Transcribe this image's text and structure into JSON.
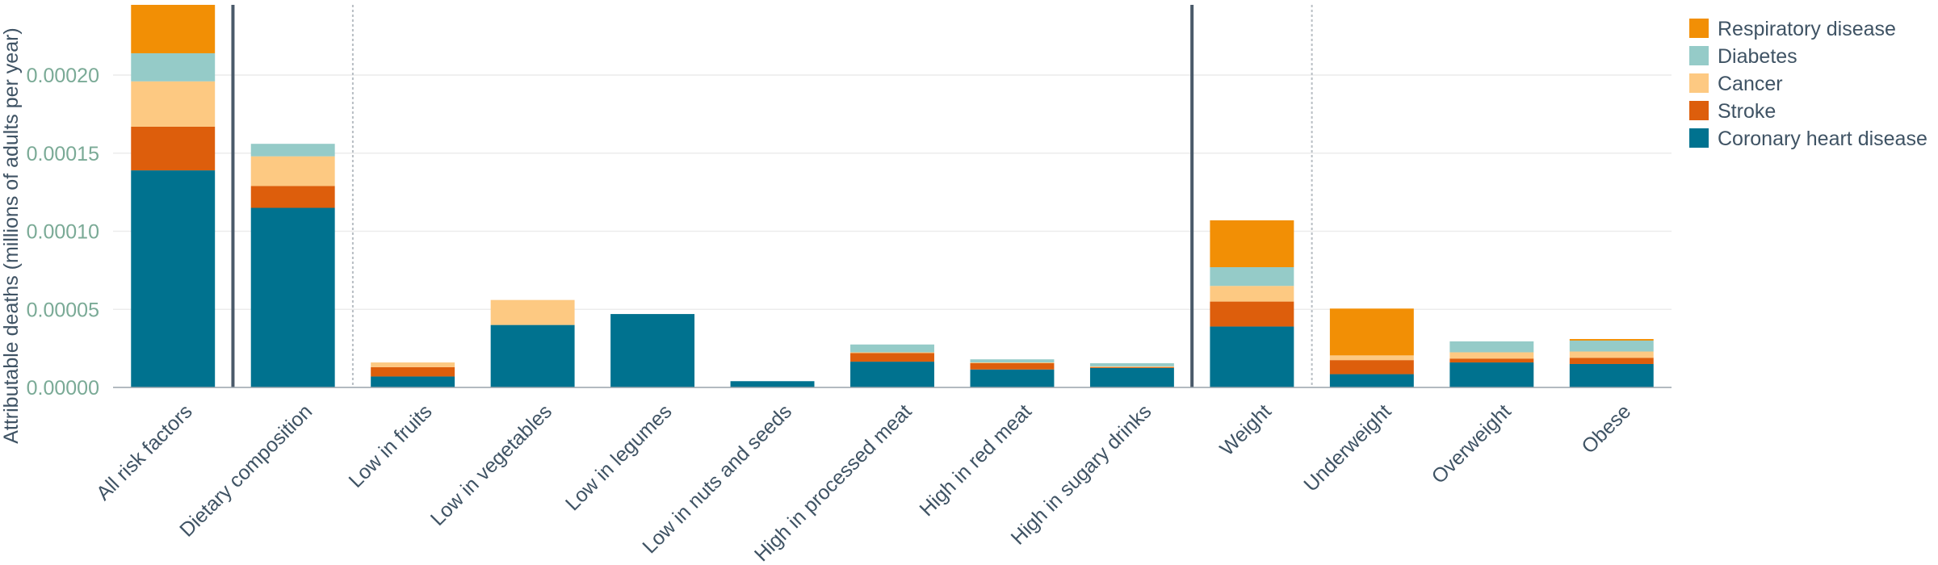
{
  "chart_data": {
    "type": "bar",
    "stacked": true,
    "title": "",
    "xlabel": "",
    "ylabel": "Attributable deaths (millions of adults per year)",
    "ylim": [
      0,
      0.000245
    ],
    "yticks": [
      "0.00000",
      "0.00005",
      "0.00010",
      "0.00015",
      "0.00020"
    ],
    "ytick_values": [
      0,
      5e-05,
      0.0001,
      0.00015,
      0.0002
    ],
    "grid": true,
    "legend_position": "top-right",
    "categories": [
      "All risk factors",
      "Dietary composition",
      "Low in fruits",
      "Low in vegetables",
      "Low in legumes",
      "Low in nuts and seeds",
      "High in processed meat",
      "High in red meat",
      "High in sugary drinks",
      "Weight",
      "Underweight",
      "Overweight",
      "Obese"
    ],
    "series": [
      {
        "name": "Coronary heart disease",
        "color": "#00728f",
        "values": [
          0.000139,
          0.000115,
          7e-06,
          4e-05,
          4.7e-05,
          4e-06,
          1.65e-05,
          1.15e-05,
          1.25e-05,
          3.9e-05,
          8.5e-06,
          1.6e-05,
          1.5e-05
        ]
      },
      {
        "name": "Stroke",
        "color": "#dd5e0c",
        "values": [
          2.8e-05,
          1.4e-05,
          6e-06,
          0,
          0,
          0,
          5.5e-06,
          4e-06,
          5e-07,
          1.6e-05,
          9e-06,
          2.5e-06,
          4e-06
        ]
      },
      {
        "name": "Cancer",
        "color": "#fdc982",
        "values": [
          2.9e-05,
          1.9e-05,
          3e-06,
          1.6e-05,
          0,
          0,
          5e-07,
          5e-07,
          5e-07,
          1e-05,
          3e-06,
          4e-06,
          4e-06
        ]
      },
      {
        "name": "Diabetes",
        "color": "#95cbc8",
        "values": [
          1.8e-05,
          8e-06,
          0,
          0,
          0,
          0,
          5e-06,
          2e-06,
          2e-06,
          1.2e-05,
          0,
          7e-06,
          7e-06
        ]
      },
      {
        "name": "Respiratory disease",
        "color": "#f28f05",
        "values": [
          3.1e-05,
          0,
          0,
          0,
          0,
          0,
          0,
          0,
          0,
          3e-05,
          3e-05,
          0,
          1e-06
        ]
      }
    ],
    "legend_order": [
      "Respiratory disease",
      "Diabetes",
      "Cancer",
      "Stroke",
      "Coronary heart disease"
    ],
    "group_separators": [
      {
        "after": "All risk factors",
        "style": "solid"
      },
      {
        "after": "Dietary composition",
        "style": "dotted"
      },
      {
        "after": "High in sugary drinks",
        "style": "solid"
      },
      {
        "after": "Weight",
        "style": "dotted"
      }
    ]
  }
}
